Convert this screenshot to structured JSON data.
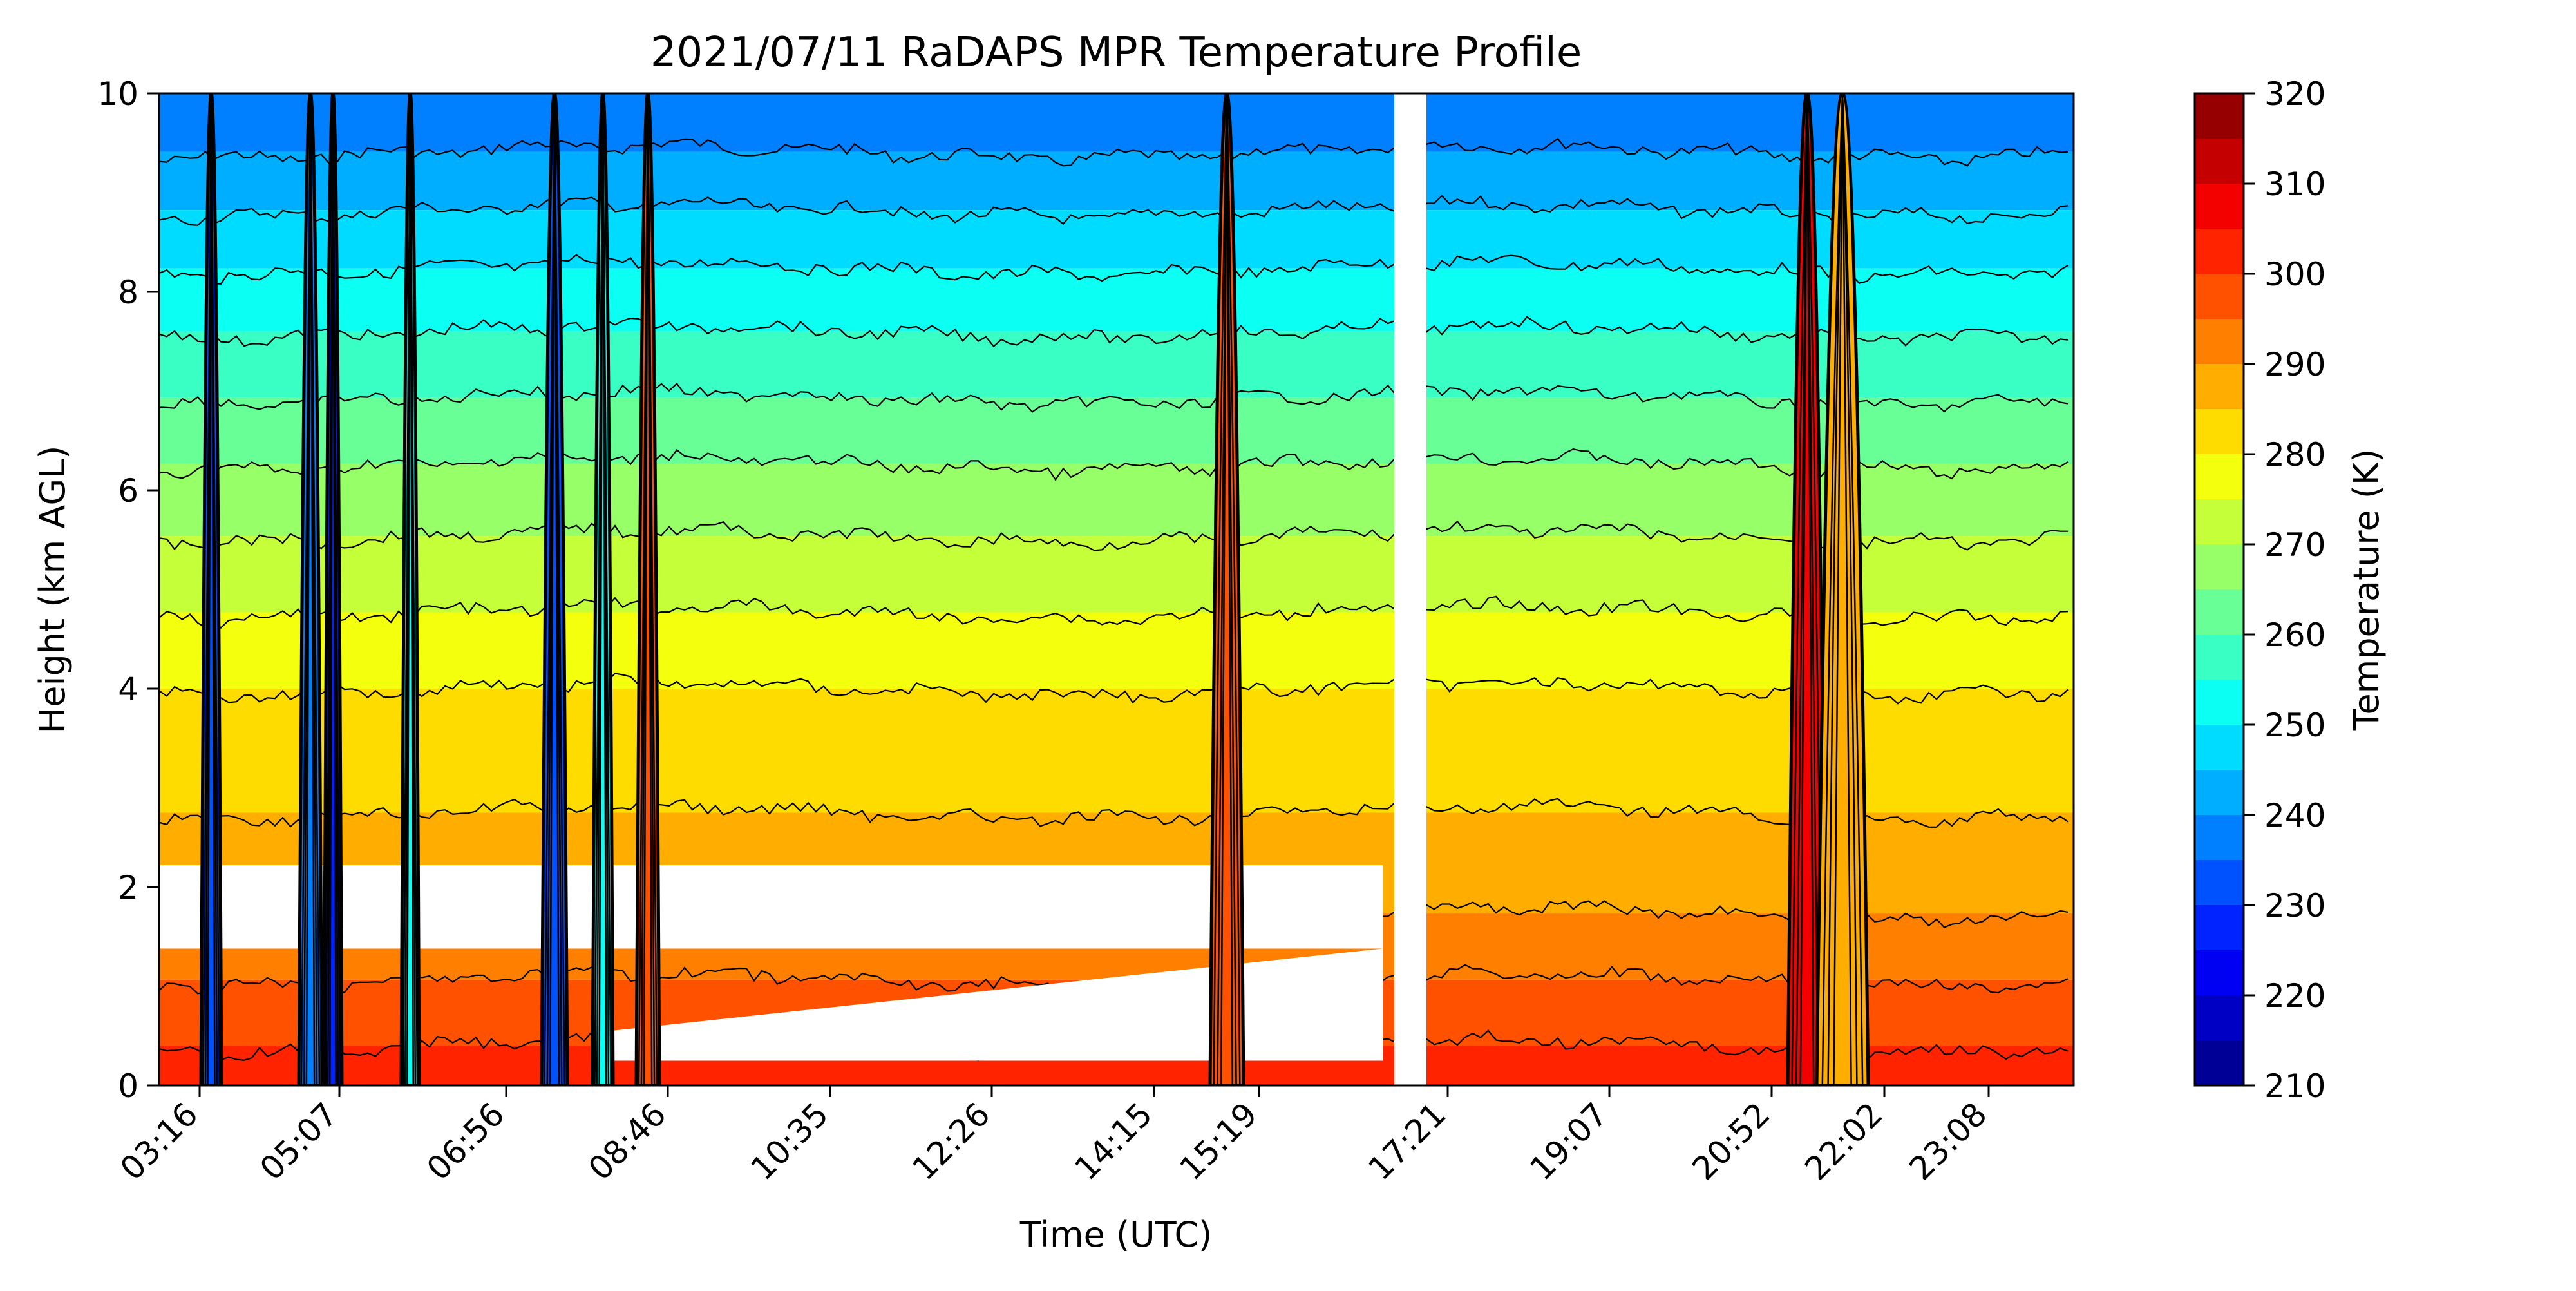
{
  "chart_data": {
    "type": "heatmap",
    "subtype": "filled-contour",
    "title": "2021/07/11 RaDAPS MPR Temperature Profile",
    "xlabel": "Time (UTC)",
    "ylabel": "Height (km AGL)",
    "x_tick_labels": [
      "03:16",
      "05:07",
      "06:56",
      "08:46",
      "10:35",
      "12:26",
      "14:15",
      "15:19",
      "17:21",
      "19:07",
      "20:52",
      "22:02",
      "23:08"
    ],
    "ylim": [
      0,
      10
    ],
    "y_ticks": [
      0,
      2,
      4,
      6,
      8,
      10
    ],
    "colorbar": {
      "label": "Temperature (K)",
      "range": [
        210,
        320
      ],
      "tick_values": [
        210,
        220,
        230,
        240,
        250,
        260,
        270,
        280,
        290,
        300,
        310,
        320
      ],
      "level_step": 5,
      "colormap": "jet"
    },
    "temperature_profile": {
      "heights_km": [
        0,
        2,
        4,
        6,
        8,
        10
      ],
      "temperature_K": [
        303,
        288,
        280,
        267,
        252,
        235
      ]
    },
    "data_gap_after_tick": "15:19",
    "cold_spike_columns_near": [
      "03:16",
      "05:07",
      "06:56"
    ],
    "warm_spike_columns_near": [
      "15:19",
      "20:52"
    ],
    "grid": false
  }
}
